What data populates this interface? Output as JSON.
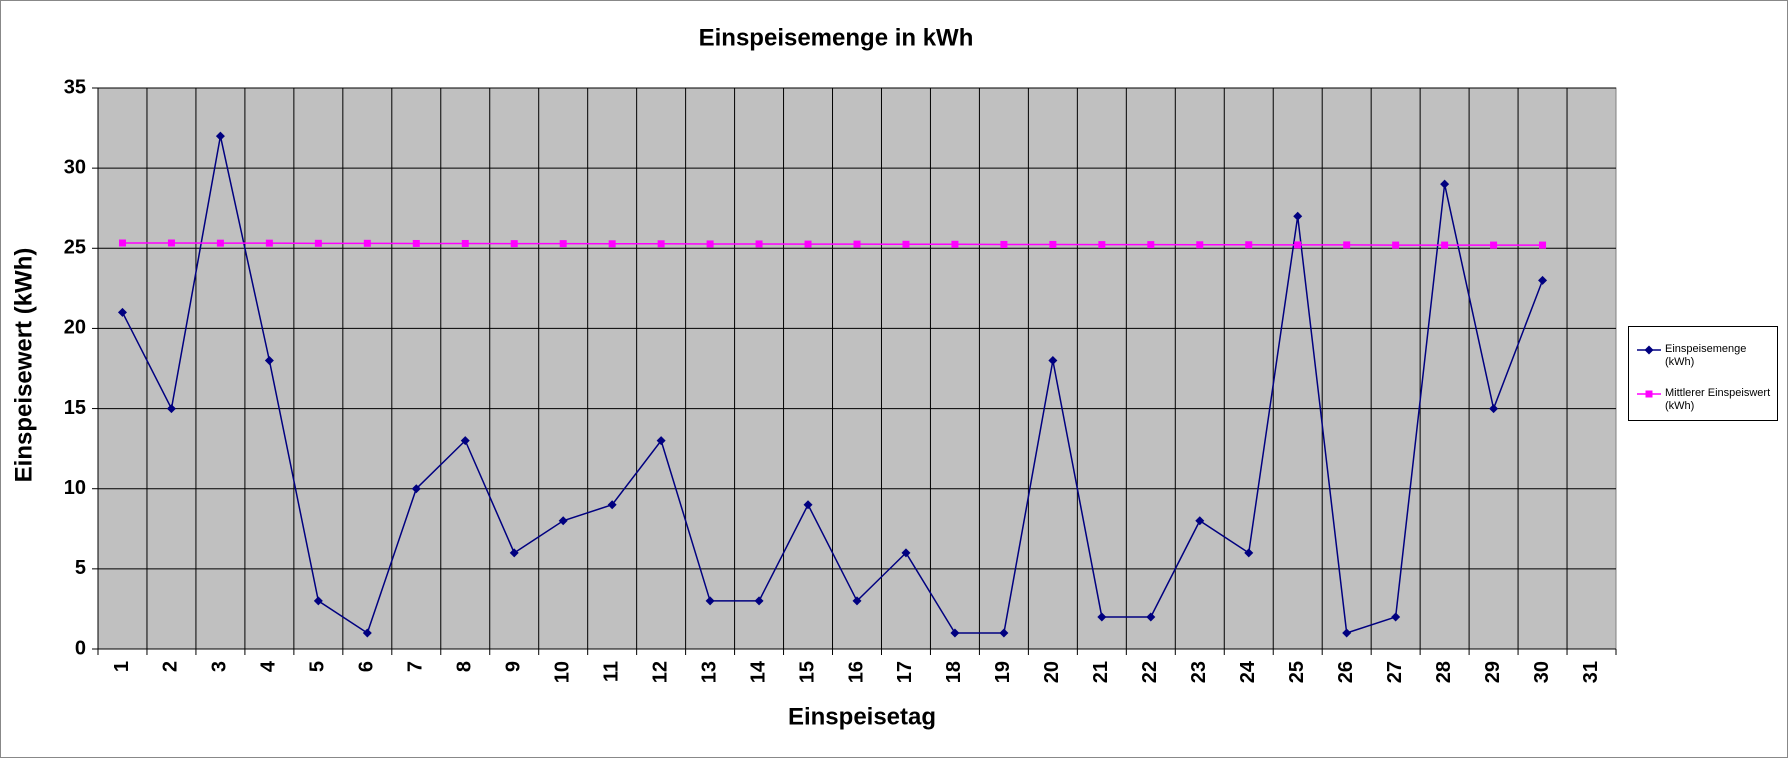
{
  "chart_data": {
    "type": "line",
    "title": "Einspeisemenge in kWh",
    "x_label": "Einspeisetag",
    "y_label": "Einspeisewert  (kWh)",
    "categories": [
      "1",
      "2",
      "3",
      "4",
      "5",
      "6",
      "7",
      "8",
      "9",
      "10",
      "11",
      "12",
      "13",
      "14",
      "15",
      "16",
      "17",
      "18",
      "19",
      "20",
      "21",
      "22",
      "23",
      "24",
      "25",
      "26",
      "27",
      "28",
      "29",
      "30",
      "31"
    ],
    "series": [
      {
        "name": "Einspeisemenge (kWh)",
        "color": "#000080",
        "marker": "diamond",
        "values": [
          21,
          15,
          32,
          18,
          3,
          1,
          10,
          13,
          6,
          8,
          9,
          13,
          3,
          3,
          9,
          3,
          6,
          1,
          1,
          18,
          2,
          2,
          8,
          6,
          27,
          1,
          2,
          29,
          15,
          23,
          null
        ]
      },
      {
        "name": "Mittlerer Einspeiswert (kWh)",
        "color": "#ff00ff",
        "marker": "square",
        "values": [
          25.33,
          25.33,
          25.32,
          25.32,
          25.31,
          25.31,
          25.3,
          25.3,
          25.29,
          25.29,
          25.28,
          25.28,
          25.27,
          25.27,
          25.26,
          25.26,
          25.25,
          25.25,
          25.24,
          25.24,
          25.23,
          25.23,
          25.22,
          25.22,
          25.21,
          25.21,
          25.2,
          25.2,
          25.2,
          25.2,
          null
        ]
      }
    ],
    "ylim": [
      0,
      35
    ],
    "yticks": [
      0,
      5,
      10,
      15,
      20,
      25,
      30,
      35
    ],
    "grid": true,
    "legend": "right"
  }
}
